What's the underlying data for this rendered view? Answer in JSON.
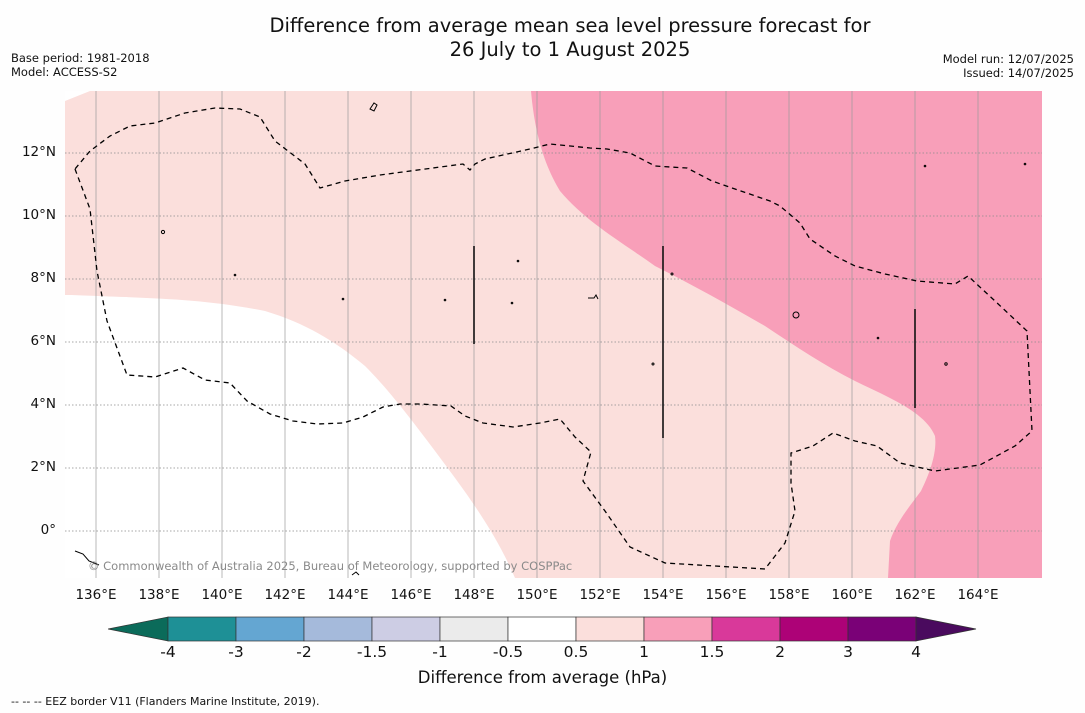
{
  "title_line1": "Difference from average mean sea level pressure forecast for",
  "title_line2": "26 July to 1 August 2025",
  "meta_left": {
    "base_period": "Base period: 1981-2018",
    "model": "Model: ACCESS-S2"
  },
  "meta_right": {
    "model_run": "Model run: 12/07/2025",
    "issued": "Issued: 14/07/2025"
  },
  "copyright": "© Commonwealth of Australia 2025, Bureau of Meteorology, supported by COSPPac",
  "lat_labels": [
    "12°N",
    "10°N",
    "8°N",
    "6°N",
    "4°N",
    "2°N",
    "0°"
  ],
  "lon_labels": [
    "136°E",
    "138°E",
    "140°E",
    "142°E",
    "144°E",
    "146°E",
    "148°E",
    "150°E",
    "152°E",
    "154°E",
    "156°E",
    "158°E",
    "160°E",
    "162°E",
    "164°E"
  ],
  "map_extent": {
    "lon": [
      135,
      166
    ],
    "lat": [
      -1.5,
      14
    ]
  },
  "colorbar": {
    "label": "Difference from average (hPa)",
    "ticks": [
      "-4",
      "-3",
      "-2",
      "-1.5",
      "-1",
      "-0.5",
      "0.5",
      "1",
      "1.5",
      "2",
      "3",
      "4"
    ],
    "under_color": "#0b6b5a",
    "over_color": "#4a0a5e",
    "colors": [
      "#1e9096",
      "#64a6d2",
      "#a5badb",
      "#cdcde4",
      "#ebebeb",
      "#ffffff",
      "#fbdfdc",
      "#f89fb9",
      "#d9399a",
      "#ad0277",
      "#7a0177"
    ]
  },
  "legend_footnote": "--  --  -- EEZ border V11 (Flanders Marine Institute, 2019)."
}
